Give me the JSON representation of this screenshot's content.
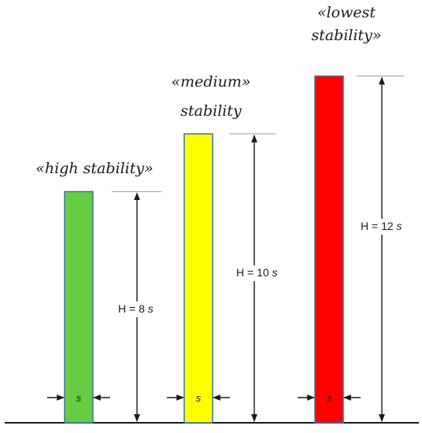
{
  "colors": {
    "high": "#66cc44",
    "medium": "#ffff00",
    "lowest": "#ff0000",
    "outline": "#41709c",
    "ink": "#1a1a1a"
  },
  "columns": [
    {
      "id": "high",
      "caption_lines": [
        "«high stability»"
      ],
      "height_label_prefix": "H = 8 ",
      "height_label_unit": "s",
      "width_label": "s",
      "height_multiple": 8
    },
    {
      "id": "medium",
      "caption_lines": [
        "«medium»",
        "stability"
      ],
      "height_label_prefix": "H = 10 ",
      "height_label_unit": "s",
      "width_label": "s",
      "height_multiple": 10
    },
    {
      "id": "lowest",
      "caption_lines": [
        "«lowest",
        "stability»"
      ],
      "height_label_prefix": "H = 12 ",
      "height_label_unit": "s",
      "width_label": "s",
      "height_multiple": 12
    }
  ]
}
